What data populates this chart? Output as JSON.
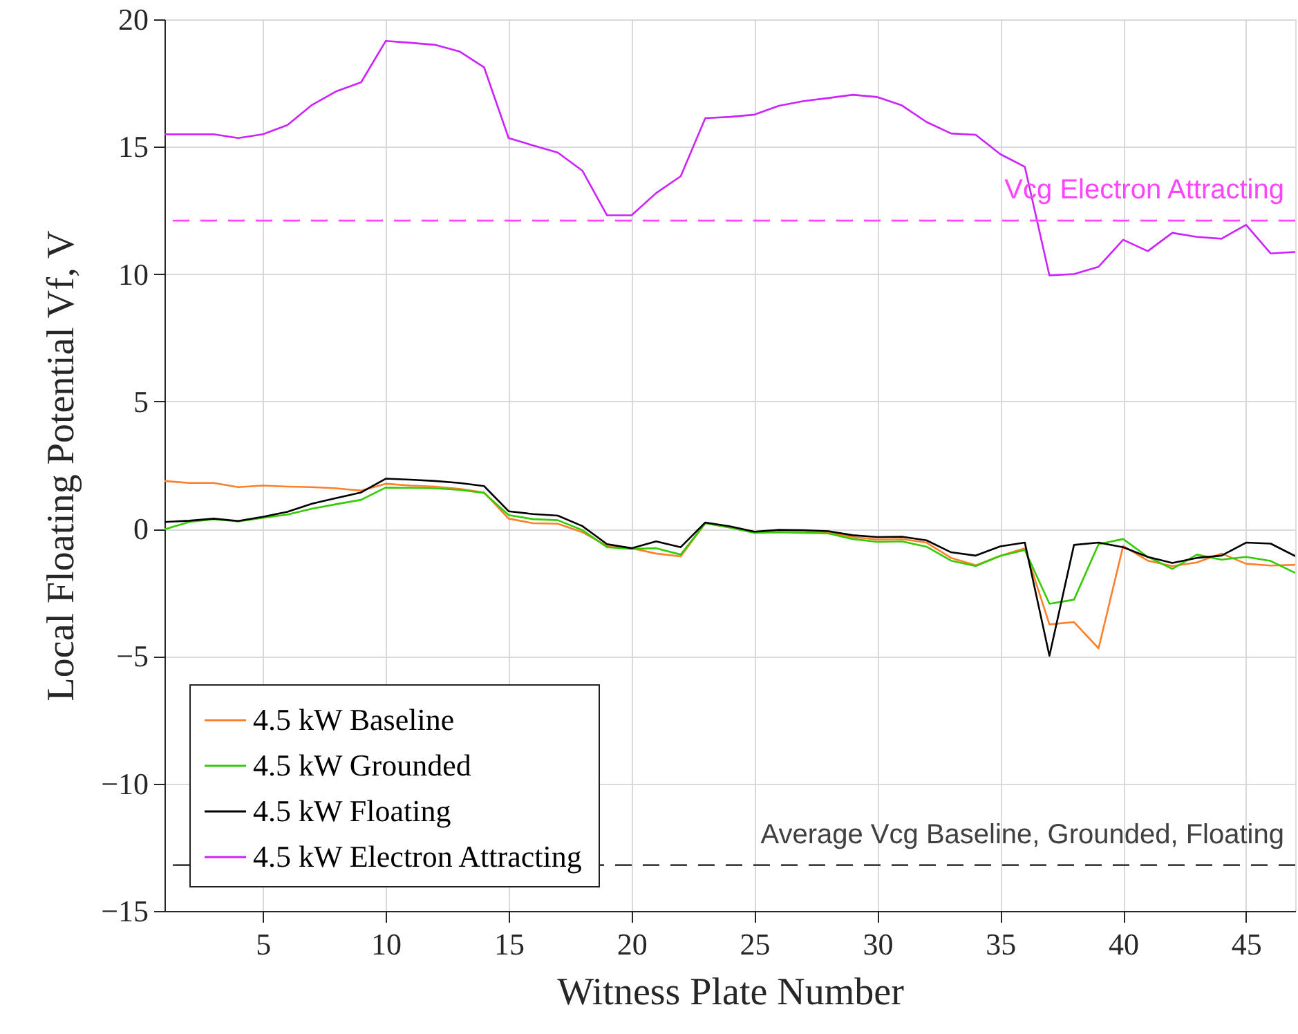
{
  "chart_data": {
    "type": "line",
    "xlabel": "Witness Plate Number",
    "ylabel": "Local Floating Potential Vf, V",
    "x": [
      1,
      2,
      3,
      4,
      5,
      6,
      7,
      8,
      9,
      10,
      11,
      12,
      13,
      14,
      15,
      16,
      17,
      18,
      19,
      20,
      21,
      22,
      23,
      24,
      25,
      26,
      27,
      28,
      29,
      30,
      31,
      32,
      33,
      34,
      35,
      36,
      37,
      38,
      39,
      40,
      41,
      42,
      43,
      44,
      45,
      46,
      47
    ],
    "xlim": [
      1,
      47
    ],
    "xticks": [
      5,
      10,
      15,
      20,
      25,
      30,
      35,
      40,
      45
    ],
    "ylim": [
      -15,
      20
    ],
    "yticks": [
      -15,
      -10,
      -5,
      0,
      5,
      10,
      15,
      20
    ],
    "grid": true,
    "legend": "bottom left",
    "line_style": "solid",
    "marker": "none",
    "series": [
      {
        "name": "4.5 kW Baseline",
        "color": "#ff7f2a",
        "values": [
          1.88,
          1.8,
          1.8,
          1.64,
          1.7,
          1.66,
          1.64,
          1.59,
          1.5,
          1.77,
          1.7,
          1.66,
          1.57,
          1.43,
          0.4,
          0.22,
          0.2,
          -0.13,
          -0.67,
          -0.76,
          -0.97,
          -1.08,
          0.22,
          0.05,
          -0.13,
          -0.05,
          -0.09,
          -0.13,
          -0.32,
          -0.42,
          -0.4,
          -0.54,
          -1.14,
          -1.43,
          -1.06,
          -0.76,
          -3.75,
          -3.66,
          -4.69,
          -0.67,
          -1.25,
          -1.46,
          -1.32,
          -0.97,
          -1.37,
          -1.44,
          -1.41
        ]
      },
      {
        "name": "4.5 kW Grounded",
        "color": "#33cc00",
        "values": [
          -0.02,
          0.27,
          0.38,
          0.29,
          0.43,
          0.56,
          0.79,
          0.97,
          1.14,
          1.62,
          1.61,
          1.59,
          1.53,
          1.41,
          0.54,
          0.38,
          0.34,
          -0.05,
          -0.72,
          -0.79,
          -0.76,
          -1.01,
          0.22,
          0.05,
          -0.16,
          -0.14,
          -0.16,
          -0.18,
          -0.4,
          -0.51,
          -0.49,
          -0.7,
          -1.25,
          -1.46,
          -1.06,
          -0.83,
          -2.94,
          -2.78,
          -0.6,
          -0.4,
          -1.1,
          -1.57,
          -1.01,
          -1.21,
          -1.1,
          -1.26,
          -1.73
        ]
      },
      {
        "name": "4.5 kW Floating",
        "color": "#000000",
        "values": [
          0.27,
          0.32,
          0.4,
          0.31,
          0.47,
          0.67,
          0.99,
          1.21,
          1.43,
          1.97,
          1.93,
          1.88,
          1.8,
          1.68,
          0.69,
          0.58,
          0.52,
          0.11,
          -0.6,
          -0.76,
          -0.49,
          -0.72,
          0.25,
          0.1,
          -0.11,
          -0.04,
          -0.05,
          -0.09,
          -0.25,
          -0.32,
          -0.31,
          -0.45,
          -0.92,
          -1.05,
          -0.69,
          -0.54,
          -4.98,
          -0.63,
          -0.54,
          -0.72,
          -1.1,
          -1.34,
          -1.14,
          -1.05,
          -0.54,
          -0.58,
          -1.07
        ]
      },
      {
        "name": "4.5 kW Electron Attracting",
        "color": "#cc22ff",
        "values": [
          15.49,
          15.49,
          15.49,
          15.34,
          15.49,
          15.85,
          16.64,
          17.18,
          17.53,
          19.15,
          19.08,
          19.0,
          18.74,
          18.12,
          15.34,
          15.05,
          14.77,
          14.06,
          12.31,
          12.31,
          13.18,
          13.84,
          16.12,
          16.17,
          16.26,
          16.61,
          16.79,
          16.91,
          17.04,
          16.95,
          16.62,
          15.97,
          15.52,
          15.47,
          14.71,
          14.21,
          9.95,
          10.0,
          10.29,
          11.35,
          10.9,
          11.62,
          11.46,
          11.39,
          11.93,
          10.81,
          10.87
        ]
      }
    ],
    "ref_lines": [
      {
        "axis": "y",
        "value": 12.1,
        "label": "Vcg Electron Attracting",
        "color": "#ff44ff",
        "line_style": "dashed"
      },
      {
        "axis": "y",
        "value": -13.2,
        "label": "Average Vcg Baseline, Grounded, Floating",
        "color": "#404040",
        "line_style": "dashed"
      }
    ]
  }
}
